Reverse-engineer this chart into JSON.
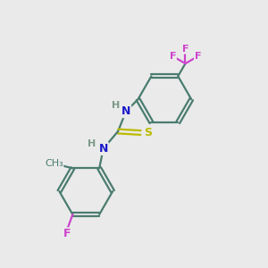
{
  "bg_color": "#eaeaea",
  "bond_color": "#4a7c6f",
  "bond_width": 1.6,
  "atom_colors": {
    "N": "#1a1acc",
    "S": "#bbbb00",
    "F": "#cc44cc",
    "C": "#4a7c6f",
    "H": "#7a9a8a"
  },
  "figsize": [
    3.0,
    3.0
  ],
  "dpi": 100
}
